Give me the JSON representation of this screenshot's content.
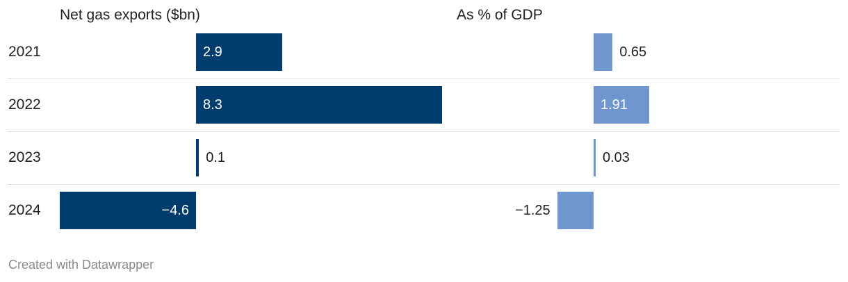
{
  "chart_data": {
    "type": "bar",
    "categories": [
      "2021",
      "2022",
      "2023",
      "2024"
    ],
    "series": [
      {
        "name": "Net gas exports ($bn)",
        "values": [
          2.9,
          8.3,
          0.1,
          -4.6
        ],
        "labels": [
          "2.9",
          "8.3",
          "0.1",
          "−4.6"
        ],
        "color": "#003d6e"
      },
      {
        "name": "As % of GDP",
        "values": [
          0.65,
          1.91,
          0.03,
          -1.25
        ],
        "labels": [
          "0.65",
          "1.91",
          "0.03",
          "−1.25"
        ],
        "color": "#6f96cf"
      }
    ]
  },
  "footer": "Created with Datawrapper"
}
